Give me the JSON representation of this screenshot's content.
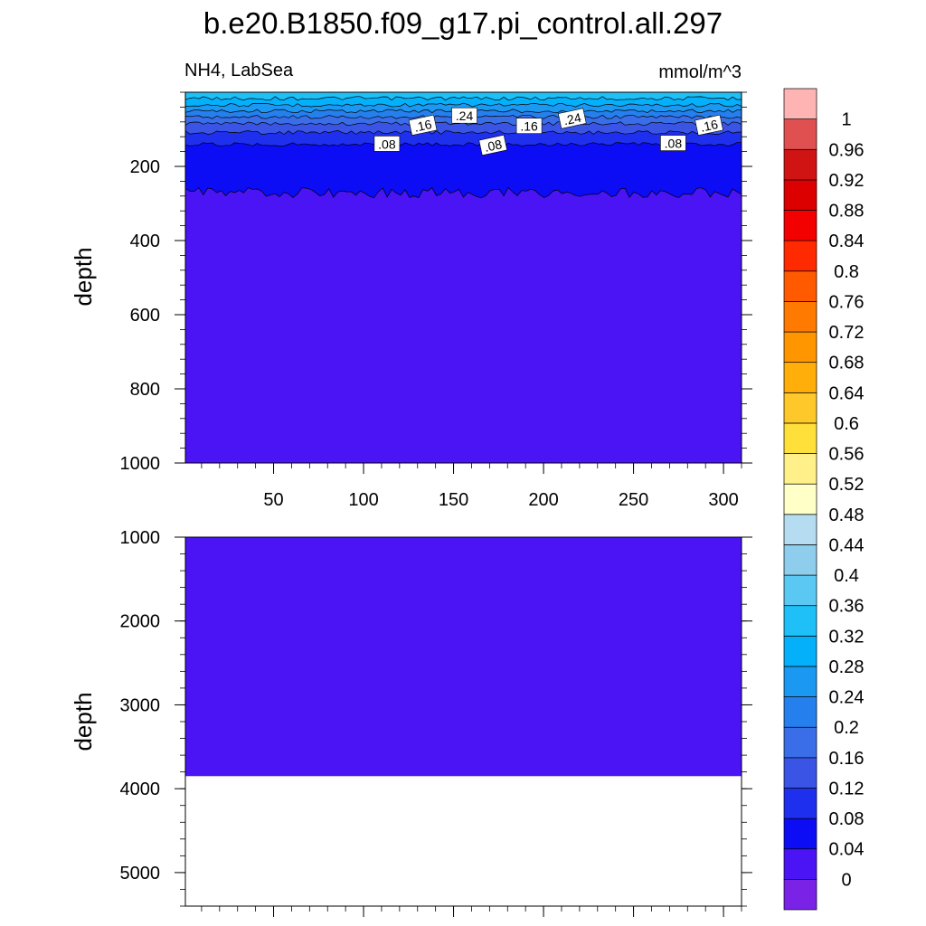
{
  "chart_data": {
    "type": "contour",
    "title": "b.e20.B1850.f09_g17.pi_control.all.297",
    "left_string": "NH4, LabSea",
    "right_string": "mmol/m^3",
    "ylabel": "depth",
    "panels": [
      {
        "name": "upper",
        "xlim": [
          1,
          310
        ],
        "ylim": [
          0,
          1000
        ],
        "y_reversed": true,
        "x_ticks": [
          "50",
          "100",
          "150",
          "200",
          "250",
          "300"
        ],
        "x_tick_values": [
          50,
          100,
          150,
          200,
          250,
          300
        ],
        "y_ticks": [
          "200",
          "400",
          "600",
          "800",
          "1000"
        ],
        "y_tick_values": [
          200,
          400,
          600,
          800,
          1000
        ],
        "contour_labels": [
          {
            "text": ".08",
            "x": 113,
            "y": 140
          },
          {
            "text": ".16",
            "x": 133,
            "y": 90
          },
          {
            "text": ".24",
            "x": 156,
            "y": 64
          },
          {
            "text": ".08",
            "x": 172,
            "y": 144
          },
          {
            "text": ".16",
            "x": 192,
            "y": 92
          },
          {
            "text": ".24",
            "x": 216,
            "y": 72
          },
          {
            "text": ".08",
            "x": 272,
            "y": 138
          },
          {
            "text": ".16",
            "x": 292,
            "y": 90
          }
        ],
        "bands": [
          {
            "upper": 0.36,
            "lower": 0.32,
            "depth_from": 0,
            "depth_to": 16
          },
          {
            "upper": 0.32,
            "lower": 0.28,
            "depth_from": 16,
            "depth_to": 34
          },
          {
            "upper": 0.28,
            "lower": 0.24,
            "depth_from": 34,
            "depth_to": 50
          },
          {
            "upper": 0.24,
            "lower": 0.2,
            "depth_from": 50,
            "depth_to": 66
          },
          {
            "upper": 0.2,
            "lower": 0.16,
            "depth_from": 66,
            "depth_to": 84
          },
          {
            "upper": 0.16,
            "lower": 0.12,
            "depth_from": 84,
            "depth_to": 108
          },
          {
            "upper": 0.12,
            "lower": 0.08,
            "depth_from": 108,
            "depth_to": 140
          },
          {
            "upper": 0.08,
            "lower": 0.04,
            "depth_from": 140,
            "depth_to": 270
          },
          {
            "upper": 0.04,
            "lower": 0.0,
            "depth_from": 270,
            "depth_to": 1000
          }
        ]
      },
      {
        "name": "lower",
        "xlim": [
          1,
          310
        ],
        "ylim": [
          1000,
          5400
        ],
        "y_reversed": true,
        "x_ticks": [],
        "x_tick_values": [
          50,
          100,
          150,
          200,
          250,
          300
        ],
        "y_ticks": [
          "1000",
          "2000",
          "3000",
          "4000",
          "5000"
        ],
        "y_tick_values": [
          1000,
          2000,
          3000,
          4000,
          5000
        ],
        "filled_range": [
          1000,
          3850
        ],
        "fill_level": 0.02
      }
    ],
    "colorbar": {
      "labels": [
        "0",
        "0.04",
        "0.08",
        "0.12",
        "0.16",
        "0.2",
        "0.24",
        "0.28",
        "0.32",
        "0.36",
        "0.4",
        "0.44",
        "0.48",
        "0.52",
        "0.56",
        "0.6",
        "0.64",
        "0.68",
        "0.72",
        "0.76",
        "0.8",
        "0.84",
        "0.88",
        "0.92",
        "0.96",
        "1"
      ],
      "colors": [
        "#7a22e6",
        "#4a14f5",
        "#0c0cf5",
        "#1f2fee",
        "#3a55e6",
        "#3a6ee8",
        "#2580ee",
        "#1a98f2",
        "#04b0fa",
        "#1fc0f8",
        "#5ac8f2",
        "#8ecdec",
        "#b6dcf2",
        "#ffffc8",
        "#fff08a",
        "#ffe03a",
        "#ffc82a",
        "#ffae0a",
        "#ff9600",
        "#ff7a00",
        "#ff5a00",
        "#ff2a00",
        "#f30000",
        "#dc0000",
        "#d01414",
        "#e05050",
        "#ffb4b4"
      ]
    }
  }
}
